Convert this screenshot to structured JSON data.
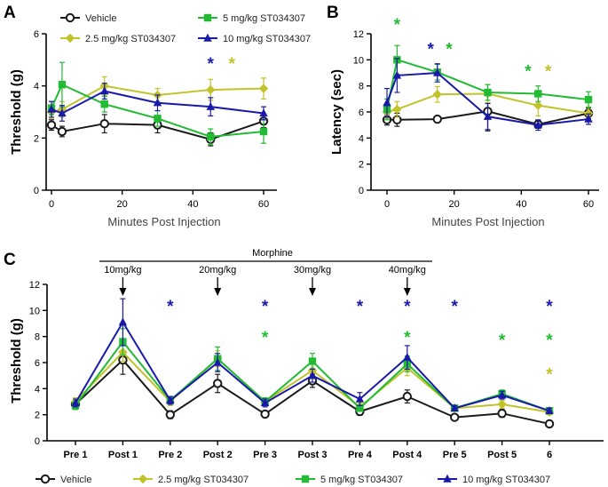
{
  "series_colors": {
    "Vehicle": "#1a1a1a",
    "2.5 mg/kg ST034307": "#c2c22a",
    "5 mg/kg ST034307": "#22bb33",
    "10 mg/kg ST034307": "#1a1aaa"
  },
  "chart_data": [
    {
      "panel": "A",
      "type": "line",
      "title": "",
      "xlabel": "Minutes Post Injection",
      "ylabel": "Threshold (g)",
      "xlim": [
        -2,
        63
      ],
      "ylim": [
        0,
        6
      ],
      "xticks": [
        0,
        20,
        40,
        60
      ],
      "yticks": [
        0,
        2,
        4,
        6
      ],
      "legend": [
        "Vehicle",
        "2.5 mg/kg ST034307",
        "5 mg/kg ST034307",
        "10 mg/kg ST034307"
      ],
      "series": [
        {
          "name": "Vehicle",
          "marker": "circle",
          "x": [
            0,
            3,
            15,
            30,
            45,
            60
          ],
          "values": [
            2.5,
            2.25,
            2.55,
            2.5,
            1.95,
            2.65
          ],
          "errors": [
            0.2,
            0.2,
            0.35,
            0.3,
            0.25,
            0.25
          ]
        },
        {
          "name": "2.5 mg/kg ST034307",
          "marker": "diamond",
          "x": [
            0,
            3,
            15,
            30,
            45,
            60
          ],
          "values": [
            3.0,
            3.1,
            4.0,
            3.65,
            3.85,
            3.9
          ],
          "errors": [
            0.25,
            0.3,
            0.35,
            0.25,
            0.4,
            0.4
          ]
        },
        {
          "name": "5 mg/kg ST034307",
          "marker": "square",
          "x": [
            0,
            3,
            15,
            30,
            45,
            60
          ],
          "values": [
            3.15,
            4.05,
            3.3,
            2.75,
            2.05,
            2.25
          ],
          "errors": [
            0.25,
            0.85,
            0.3,
            0.3,
            0.3,
            0.45
          ]
        },
        {
          "name": "10 mg/kg ST034307",
          "marker": "triangle",
          "x": [
            0,
            3,
            15,
            30,
            45,
            60
          ],
          "values": [
            3.1,
            2.95,
            3.8,
            3.35,
            3.2,
            2.95
          ],
          "errors": [
            0.3,
            0.3,
            0.3,
            0.3,
            0.35,
            0.25
          ]
        }
      ],
      "stars": [
        {
          "x": 45,
          "y": 4.95,
          "series": "10 mg/kg ST034307"
        },
        {
          "x": 51,
          "y": 4.95,
          "series": "2.5 mg/kg ST034307"
        }
      ]
    },
    {
      "panel": "B",
      "type": "line",
      "title": "",
      "xlabel": "Minutes Post Injection",
      "ylabel": "Latency (sec)",
      "xlim": [
        -2,
        63
      ],
      "ylim": [
        0,
        12
      ],
      "xticks": [
        0,
        20,
        40,
        60
      ],
      "yticks": [
        0,
        2,
        4,
        6,
        8,
        10,
        12
      ],
      "series": [
        {
          "name": "Vehicle",
          "marker": "circle",
          "x": [
            0,
            3,
            15,
            30,
            45,
            60
          ],
          "values": [
            5.4,
            5.4,
            5.45,
            6.05,
            5.05,
            5.9
          ],
          "errors": [
            0.4,
            0.5,
            0.2,
            1.5,
            0.3,
            0.4
          ]
        },
        {
          "name": "2.5 mg/kg ST034307",
          "marker": "diamond",
          "x": [
            0,
            3,
            15,
            30,
            45,
            60
          ],
          "values": [
            6.0,
            6.2,
            7.35,
            7.4,
            6.5,
            5.9
          ],
          "errors": [
            0.5,
            0.6,
            0.6,
            0.7,
            0.8,
            0.5
          ]
        },
        {
          "name": "5 mg/kg ST034307",
          "marker": "square",
          "x": [
            0,
            3,
            15,
            30,
            45,
            60
          ],
          "values": [
            6.2,
            10.0,
            9.05,
            7.5,
            7.4,
            6.95
          ],
          "errors": [
            0.8,
            1.1,
            0.6,
            0.6,
            0.6,
            0.6
          ]
        },
        {
          "name": "10 mg/kg ST034307",
          "marker": "triangle",
          "x": [
            0,
            3,
            15,
            30,
            45,
            60
          ],
          "values": [
            6.7,
            8.8,
            9.0,
            5.65,
            5.0,
            5.45
          ],
          "errors": [
            1.1,
            1.3,
            0.7,
            1.0,
            0.4,
            0.4
          ]
        }
      ],
      "stars": [
        {
          "x": 3,
          "y": 12.9,
          "series": "5 mg/kg ST034307"
        },
        {
          "x": 13,
          "y": 11.0,
          "series": "10 mg/kg ST034307"
        },
        {
          "x": 18.5,
          "y": 11.0,
          "series": "5 mg/kg ST034307"
        },
        {
          "x": 42,
          "y": 9.3,
          "series": "5 mg/kg ST034307"
        },
        {
          "x": 48,
          "y": 9.3,
          "series": "2.5 mg/kg ST034307"
        }
      ]
    },
    {
      "panel": "C",
      "type": "line",
      "title": "Morphine",
      "xlabel": "",
      "ylabel": "Threshold (g)",
      "categories": [
        "Pre 1",
        "Post 1",
        "Pre 2",
        "Post 2",
        "Pre 3",
        "Post 3",
        "Pre 4",
        "Post 4",
        "Pre 5",
        "Post 5",
        "6"
      ],
      "ylim": [
        0,
        12
      ],
      "yticks": [
        0,
        2,
        4,
        6,
        8,
        10,
        12
      ],
      "annotations": [
        {
          "label": "10mg/kg",
          "category": 1
        },
        {
          "label": "20mg/kg",
          "category": 3
        },
        {
          "label": "30mg/kg",
          "category": 5
        },
        {
          "label": "40mg/kg",
          "category": 7
        }
      ],
      "legend": [
        "Vehicle",
        "2.5 mg/kg ST034307",
        "5 mg/kg ST034307",
        "10 mg/kg ST034307"
      ],
      "series": [
        {
          "name": "Vehicle",
          "marker": "circle",
          "values": [
            2.8,
            6.2,
            2.0,
            4.4,
            2.05,
            4.6,
            2.25,
            3.4,
            1.8,
            2.1,
            1.3
          ],
          "errors": [
            0.3,
            1.1,
            0.3,
            0.7,
            0.2,
            0.5,
            0.3,
            0.5,
            0.15,
            0.3,
            0.15
          ]
        },
        {
          "name": "2.5 mg/kg ST034307",
          "marker": "diamond",
          "values": [
            3.0,
            6.8,
            3.0,
            6.3,
            3.0,
            5.4,
            2.6,
            5.6,
            2.5,
            2.8,
            2.2
          ],
          "errors": [
            0.3,
            0.7,
            0.3,
            0.6,
            0.3,
            0.5,
            0.3,
            0.6,
            0.2,
            0.3,
            0.2
          ]
        },
        {
          "name": "5 mg/kg ST034307",
          "marker": "square",
          "values": [
            2.7,
            7.6,
            3.1,
            6.3,
            3.0,
            6.1,
            2.5,
            5.9,
            2.5,
            3.6,
            2.3
          ],
          "errors": [
            0.3,
            1.0,
            0.3,
            0.9,
            0.3,
            0.6,
            0.2,
            0.6,
            0.2,
            0.3,
            0.2
          ]
        },
        {
          "name": "10 mg/kg ST034307",
          "marker": "triangle",
          "values": [
            2.9,
            9.1,
            3.1,
            6.0,
            2.9,
            5.0,
            3.2,
            6.4,
            2.5,
            3.5,
            2.3
          ],
          "errors": [
            0.3,
            1.8,
            0.3,
            0.7,
            0.3,
            0.5,
            0.5,
            0.9,
            0.2,
            0.3,
            0.2
          ]
        }
      ],
      "stars": [
        {
          "category": 2,
          "y": 10.5,
          "series": "10 mg/kg ST034307"
        },
        {
          "category": 4,
          "y": 10.5,
          "series": "10 mg/kg ST034307"
        },
        {
          "category": 4,
          "y": 8.1,
          "series": "5 mg/kg ST034307"
        },
        {
          "category": 6,
          "y": 10.5,
          "series": "10 mg/kg ST034307"
        },
        {
          "category": 7,
          "y": 10.5,
          "series": "10 mg/kg ST034307"
        },
        {
          "category": 7,
          "y": 8.1,
          "series": "5 mg/kg ST034307"
        },
        {
          "category": 8,
          "y": 10.5,
          "series": "10 mg/kg ST034307"
        },
        {
          "category": 9,
          "y": 7.9,
          "series": "5 mg/kg ST034307"
        },
        {
          "category": 10,
          "y": 10.5,
          "series": "10 mg/kg ST034307"
        },
        {
          "category": 10,
          "y": 7.9,
          "series": "5 mg/kg ST034307"
        },
        {
          "category": 10,
          "y": 5.3,
          "series": "2.5 mg/kg ST034307"
        }
      ]
    }
  ]
}
